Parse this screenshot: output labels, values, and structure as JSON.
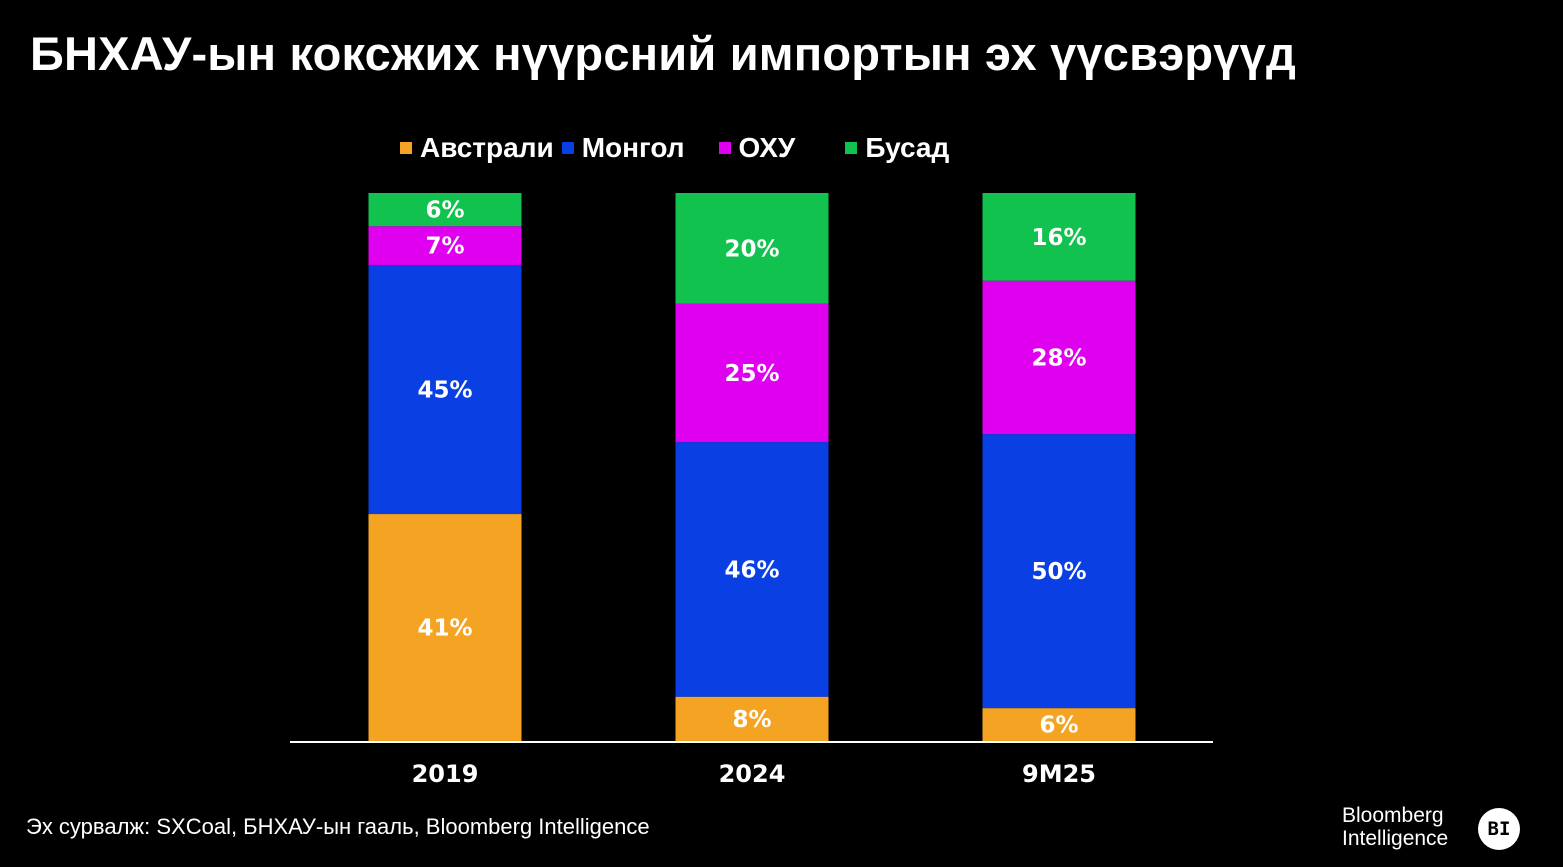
{
  "title": "БНХАУ-ын коксжих нүүрсний импортын эх үүсвэрүүд",
  "source": "Эх сурвалж: SXCoal, БНХАУ-ын гааль, Bloomberg Intelligence",
  "brand": {
    "line1": "Bloomberg",
    "line2": "Intelligence",
    "icon_text": "BI"
  },
  "chart_data": {
    "type": "bar",
    "stacked": true,
    "normalized_percent": true,
    "categories": [
      "2019",
      "2024",
      "9M25"
    ],
    "series": [
      {
        "name": "Австрали",
        "color": "#F4A422",
        "values": [
          41,
          8,
          6
        ],
        "labels": [
          "41%",
          "8%",
          "6%"
        ]
      },
      {
        "name": "Монгол",
        "color": "#0A3FE3",
        "values": [
          45,
          46,
          50
        ],
        "labels": [
          "45%",
          "46%",
          "50%"
        ]
      },
      {
        "name": "ОХУ",
        "color": "#E000F0",
        "values": [
          7,
          25,
          28
        ],
        "labels": [
          "7%",
          "25%",
          "28%"
        ]
      },
      {
        "name": "Бусад",
        "color": "#12C24E",
        "values": [
          6,
          20,
          16
        ],
        "labels": [
          "6%",
          "20%",
          "16%"
        ]
      }
    ],
    "ylim": [
      0,
      100
    ],
    "legend_position": "top-center",
    "grid": false,
    "background": "#000000",
    "text_color": "#FFFFFF",
    "axis_color": "#FFFFFF"
  }
}
